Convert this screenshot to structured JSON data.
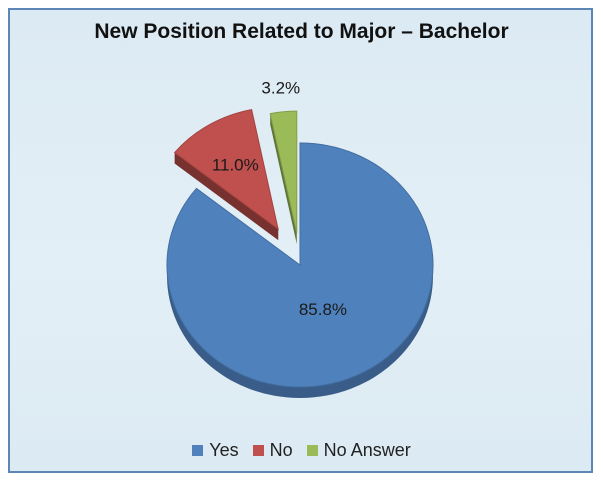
{
  "chart_data": {
    "type": "pie",
    "title": "New Position Related to Major – Bachelor",
    "categories": [
      "Yes",
      "No",
      "No Answer"
    ],
    "values": [
      85.8,
      11.0,
      3.2
    ],
    "data_labels": [
      "85.8%",
      "11.0%",
      "3.2%"
    ],
    "colors": [
      "#4f81bd",
      "#c0504d",
      "#9bbb59"
    ],
    "style": "3d-exploded",
    "legend_position": "bottom"
  }
}
